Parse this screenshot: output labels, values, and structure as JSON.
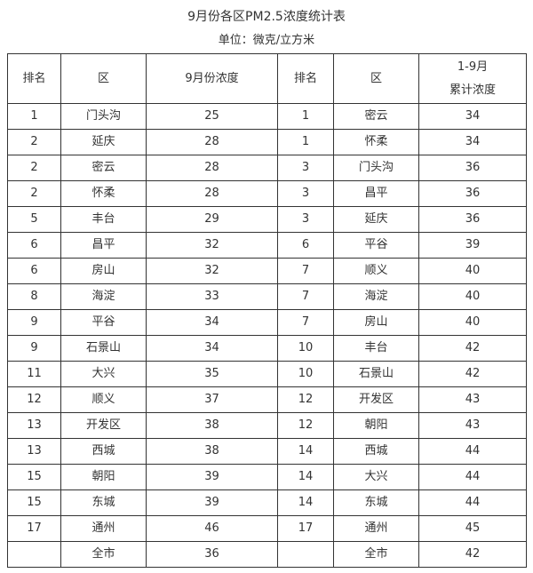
{
  "title": "9月份各区PM2.5浓度统计表",
  "unit": "单位：微克/立方米",
  "columns": {
    "rank1": "排名",
    "district1": "区",
    "sep_conc": "9月份浓度",
    "rank2": "排名",
    "district2": "区",
    "cum_conc_line1": "1-9月",
    "cum_conc_line2": "累计浓度"
  },
  "rows": [
    {
      "rank1": "1",
      "district1": "门头沟",
      "sep": "25",
      "rank2": "1",
      "district2": "密云",
      "cum": "34"
    },
    {
      "rank1": "2",
      "district1": "延庆",
      "sep": "28",
      "rank2": "1",
      "district2": "怀柔",
      "cum": "34"
    },
    {
      "rank1": "2",
      "district1": "密云",
      "sep": "28",
      "rank2": "3",
      "district2": "门头沟",
      "cum": "36"
    },
    {
      "rank1": "2",
      "district1": "怀柔",
      "sep": "28",
      "rank2": "3",
      "district2": "昌平",
      "cum": "36"
    },
    {
      "rank1": "5",
      "district1": "丰台",
      "sep": "29",
      "rank2": "3",
      "district2": "延庆",
      "cum": "36"
    },
    {
      "rank1": "6",
      "district1": "昌平",
      "sep": "32",
      "rank2": "6",
      "district2": "平谷",
      "cum": "39"
    },
    {
      "rank1": "6",
      "district1": "房山",
      "sep": "32",
      "rank2": "7",
      "district2": "顺义",
      "cum": "40"
    },
    {
      "rank1": "8",
      "district1": "海淀",
      "sep": "33",
      "rank2": "7",
      "district2": "海淀",
      "cum": "40"
    },
    {
      "rank1": "9",
      "district1": "平谷",
      "sep": "34",
      "rank2": "7",
      "district2": "房山",
      "cum": "40"
    },
    {
      "rank1": "9",
      "district1": "石景山",
      "sep": "34",
      "rank2": "10",
      "district2": "丰台",
      "cum": "42"
    },
    {
      "rank1": "11",
      "district1": "大兴",
      "sep": "35",
      "rank2": "10",
      "district2": "石景山",
      "cum": "42"
    },
    {
      "rank1": "12",
      "district1": "顺义",
      "sep": "37",
      "rank2": "12",
      "district2": "开发区",
      "cum": "43"
    },
    {
      "rank1": "13",
      "district1": "开发区",
      "sep": "38",
      "rank2": "12",
      "district2": "朝阳",
      "cum": "43"
    },
    {
      "rank1": "13",
      "district1": "西城",
      "sep": "38",
      "rank2": "14",
      "district2": "西城",
      "cum": "44"
    },
    {
      "rank1": "15",
      "district1": "朝阳",
      "sep": "39",
      "rank2": "14",
      "district2": "大兴",
      "cum": "44"
    },
    {
      "rank1": "15",
      "district1": "东城",
      "sep": "39",
      "rank2": "14",
      "district2": "东城",
      "cum": "44"
    },
    {
      "rank1": "17",
      "district1": "通州",
      "sep": "46",
      "rank2": "17",
      "district2": "通州",
      "cum": "45"
    },
    {
      "rank1": "",
      "district1": "全市",
      "sep": "36",
      "rank2": "",
      "district2": "全市",
      "cum": "42"
    }
  ]
}
